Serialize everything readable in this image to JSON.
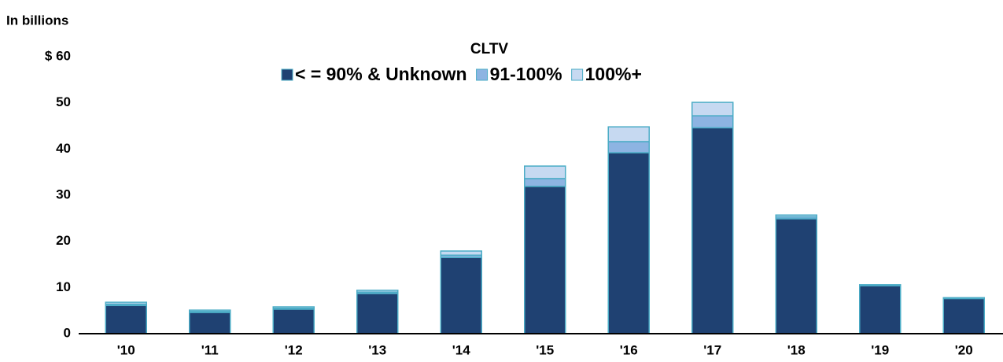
{
  "chart_data": {
    "type": "stacked_bar",
    "y_axis_label": "In billions",
    "legend_title": "CLTV",
    "categories": [
      "'10",
      "'11",
      "'12",
      "'13",
      "'14",
      "'15",
      "'16",
      "'17",
      "'18",
      "'19",
      "'20"
    ],
    "series": [
      {
        "name": "< = 90% & Unknown",
        "color": "#1f4172",
        "values": [
          6.1,
          4.6,
          5.3,
          8.7,
          16.5,
          31.9,
          39.2,
          44.6,
          24.9,
          10.4,
          7.6
        ]
      },
      {
        "name": "91-100%",
        "color": "#8db4e2",
        "values": [
          0.3,
          0.2,
          0.2,
          0.3,
          0.5,
          1.7,
          2.4,
          2.6,
          0.4,
          0.1,
          0.1
        ]
      },
      {
        "name": "100%+",
        "color": "#c6d9f1",
        "values": [
          0.4,
          0.3,
          0.3,
          0.4,
          0.9,
          2.7,
          3.2,
          2.9,
          0.4,
          0.1,
          0.1
        ]
      }
    ],
    "ylim": [
      0,
      60
    ],
    "yticks": [
      0,
      10,
      20,
      30,
      40,
      50,
      {
        "value": 60,
        "label": "$ 60"
      }
    ],
    "grid": false
  }
}
